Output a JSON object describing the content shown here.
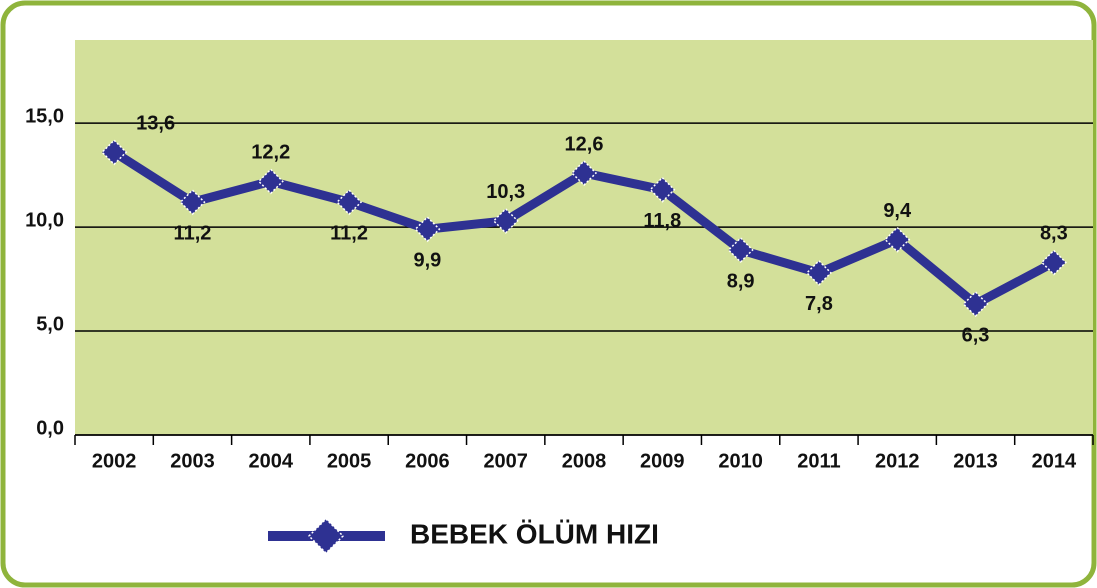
{
  "chart_data": {
    "type": "line",
    "categories": [
      "2002",
      "2003",
      "2004",
      "2005",
      "2006",
      "2007",
      "2008",
      "2009",
      "2010",
      "2011",
      "2012",
      "2013",
      "2014"
    ],
    "series": [
      {
        "name": "BEBEK ÖLÜM HIZI",
        "color": "#2e3192",
        "values": [
          13.6,
          11.2,
          12.2,
          11.2,
          9.9,
          10.3,
          12.6,
          11.8,
          8.9,
          7.8,
          9.4,
          6.3,
          8.3
        ],
        "value_labels": [
          "13,6",
          "11,2",
          "12,2",
          "11,2",
          "9,9",
          "10,3",
          "12,6",
          "11,8",
          "8,9",
          "7,8",
          "9,4",
          "6,3",
          "8,3"
        ]
      }
    ],
    "ylim": [
      0,
      19
    ],
    "yticks": [
      {
        "value": 0,
        "label": "0,0"
      },
      {
        "value": 5,
        "label": "5,0"
      },
      {
        "value": 10,
        "label": "10,0"
      },
      {
        "value": 15,
        "label": "15,0"
      }
    ],
    "grid": true,
    "legend": "bottom"
  }
}
